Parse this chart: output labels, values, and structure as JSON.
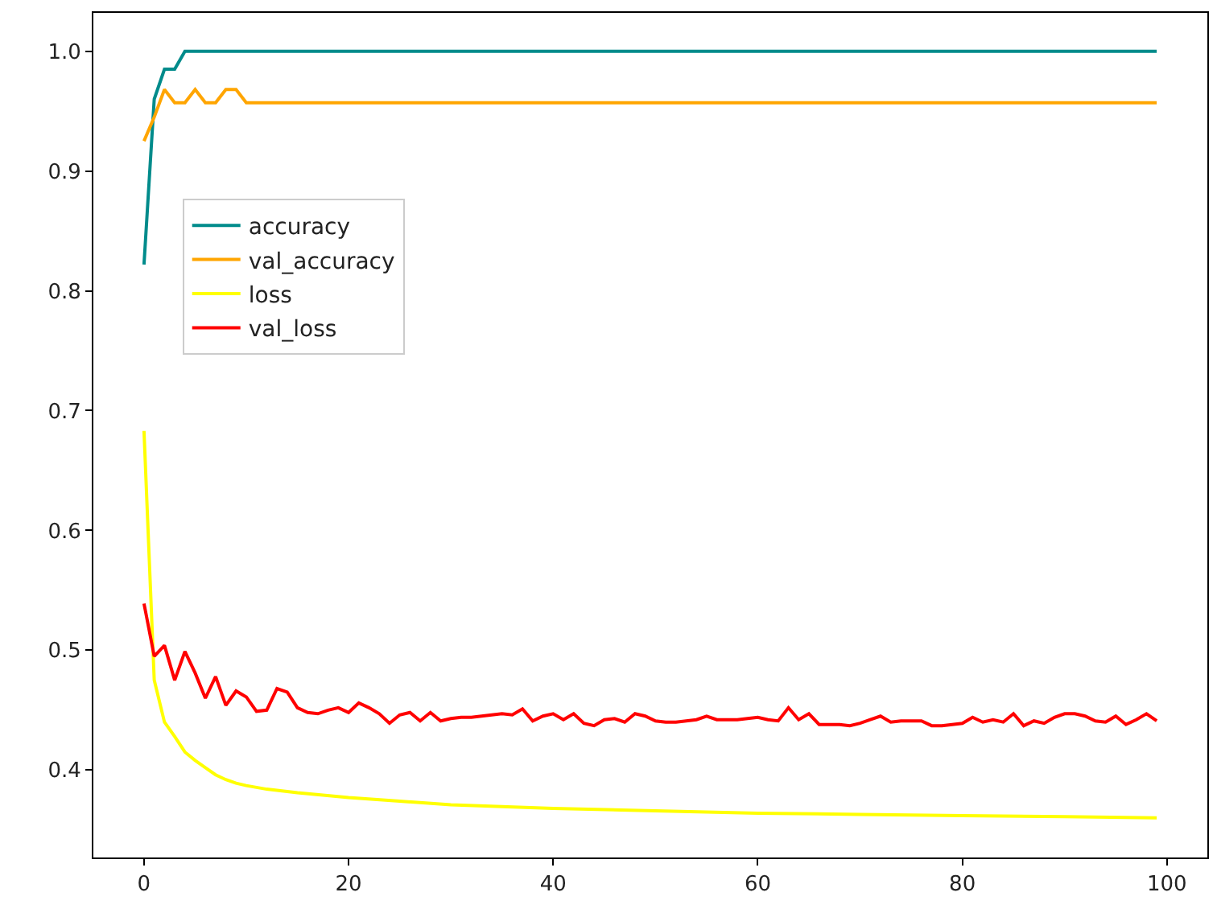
{
  "chart_data": {
    "type": "line",
    "xlim": [
      -4.95,
      103.95
    ],
    "xticks": [
      0,
      20,
      40,
      60,
      80,
      100
    ],
    "ylim": [
      0.327,
      1.032
    ],
    "yticks": [
      0.4,
      0.5,
      0.6,
      0.7,
      0.8,
      0.9,
      {
        "value": 1,
        "label": "1.0"
      }
    ],
    "grid": false,
    "legend": "left",
    "marker": "none",
    "line_style": "solid",
    "series": [
      {
        "name": "accuracy",
        "color": "#008b8b",
        "x": [
          0,
          1,
          2,
          3,
          4,
          99
        ],
        "values": [
          0.822,
          0.96,
          0.985,
          0.985,
          1.0,
          1.0
        ]
      },
      {
        "name": "val_accuracy",
        "color": "#ffa500",
        "x": [
          0,
          1,
          2,
          3,
          4,
          5,
          6,
          7,
          8,
          9,
          10,
          99
        ],
        "values": [
          0.925,
          0.945,
          0.968,
          0.957,
          0.957,
          0.968,
          0.957,
          0.957,
          0.968,
          0.968,
          0.957,
          0.957
        ]
      },
      {
        "name": "loss",
        "color": "#ffff00",
        "x": [
          0,
          1,
          2,
          3,
          4,
          5,
          6,
          7,
          8,
          9,
          10,
          12,
          15,
          20,
          25,
          30,
          40,
          50,
          60,
          70,
          80,
          90,
          99
        ],
        "values": [
          0.683,
          0.475,
          0.44,
          0.428,
          0.415,
          0.408,
          0.402,
          0.396,
          0.392,
          0.389,
          0.387,
          0.384,
          0.381,
          0.377,
          0.374,
          0.371,
          0.368,
          0.366,
          0.364,
          0.363,
          0.362,
          0.361,
          0.36
        ]
      },
      {
        "name": "val_loss",
        "color": "#ff0000",
        "x": [
          0,
          1,
          2,
          3,
          4,
          5,
          6,
          7,
          8,
          9,
          10,
          11,
          12,
          13,
          14,
          15,
          16,
          17,
          18,
          19,
          20,
          21,
          22,
          23,
          24,
          25,
          26,
          27,
          28,
          29,
          30,
          31,
          32,
          33,
          34,
          35,
          36,
          37,
          38,
          39,
          40,
          41,
          42,
          43,
          44,
          45,
          46,
          47,
          48,
          49,
          50,
          51,
          52,
          53,
          54,
          55,
          56,
          57,
          58,
          59,
          60,
          61,
          62,
          63,
          64,
          65,
          66,
          67,
          68,
          69,
          70,
          71,
          72,
          73,
          74,
          75,
          76,
          77,
          78,
          79,
          80,
          81,
          82,
          83,
          84,
          85,
          86,
          87,
          88,
          89,
          90,
          91,
          92,
          93,
          94,
          95,
          96,
          97,
          98,
          99
        ],
        "values": [
          0.539,
          0.495,
          0.504,
          0.475,
          0.499,
          0.481,
          0.46,
          0.478,
          0.454,
          0.466,
          0.461,
          0.449,
          0.45,
          0.468,
          0.465,
          0.452,
          0.448,
          0.447,
          0.45,
          0.452,
          0.448,
          0.456,
          0.452,
          0.447,
          0.439,
          0.446,
          0.448,
          0.441,
          0.448,
          0.441,
          0.443,
          0.444,
          0.444,
          0.445,
          0.446,
          0.447,
          0.446,
          0.451,
          0.441,
          0.445,
          0.447,
          0.442,
          0.447,
          0.439,
          0.437,
          0.442,
          0.443,
          0.44,
          0.447,
          0.445,
          0.441,
          0.44,
          0.44,
          0.441,
          0.442,
          0.445,
          0.442,
          0.442,
          0.442,
          0.443,
          0.444,
          0.442,
          0.441,
          0.452,
          0.442,
          0.447,
          0.438,
          0.438,
          0.438,
          0.437,
          0.439,
          0.442,
          0.445,
          0.44,
          0.441,
          0.441,
          0.441,
          0.437,
          0.437,
          0.438,
          0.439,
          0.444,
          0.44,
          0.442,
          0.44,
          0.447,
          0.437,
          0.441,
          0.439,
          0.444,
          0.447,
          0.447,
          0.445,
          0.441,
          0.44,
          0.445,
          0.438,
          0.442,
          0.447,
          0.441
        ]
      }
    ]
  }
}
